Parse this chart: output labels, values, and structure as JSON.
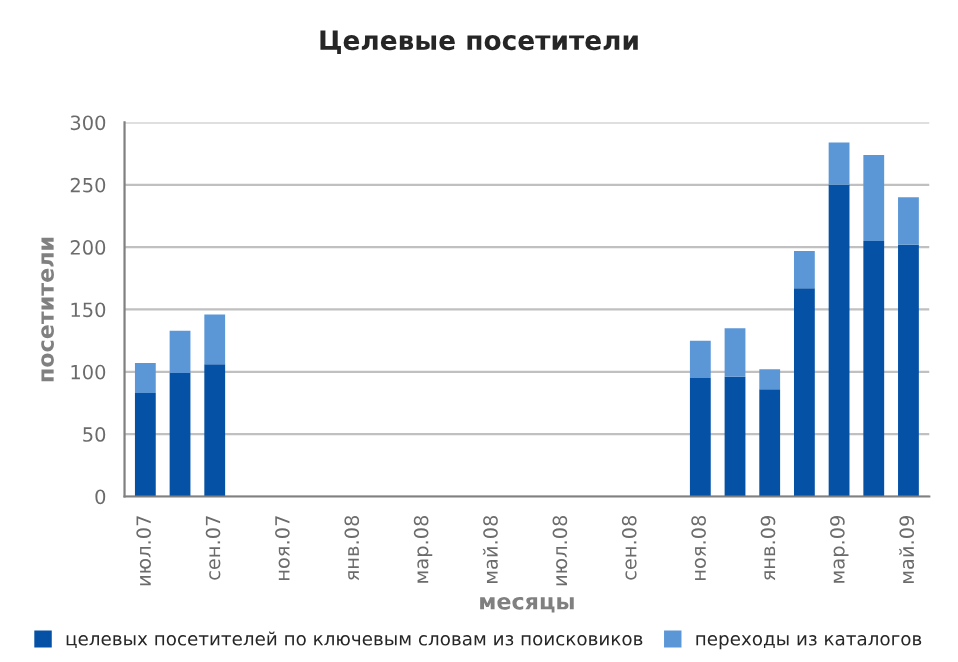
{
  "chart_data": {
    "type": "bar",
    "title": "Целевые посетители",
    "xlabel": "месяцы",
    "ylabel": "посетители",
    "categories": [
      "июл.07",
      null,
      "сен.07",
      null,
      "ноя.07",
      null,
      "янв.08",
      null,
      "мар.08",
      null,
      "май.08",
      null,
      "июл.08",
      null,
      "сен.08",
      null,
      "ноя.08",
      null,
      "янв.09",
      null,
      "мар.09",
      null,
      "май.09"
    ],
    "stacked": true,
    "series": [
      {
        "name": "целевых посетителей по ключевым словам из поисковиков",
        "color": "#0451a5",
        "values": [
          83,
          99,
          106,
          null,
          null,
          null,
          null,
          null,
          null,
          null,
          null,
          null,
          null,
          null,
          null,
          null,
          95,
          96,
          86,
          167,
          250,
          205,
          202
        ]
      },
      {
        "name": "переходы из каталогов",
        "color": "#5b97d6",
        "values": [
          24,
          34,
          40,
          null,
          null,
          null,
          null,
          null,
          null,
          null,
          null,
          null,
          null,
          null,
          null,
          null,
          30,
          39,
          16,
          30,
          34,
          69,
          38
        ]
      }
    ],
    "ylim": [
      0,
      300
    ],
    "yticks": [
      0,
      50,
      100,
      150,
      200,
      250,
      300
    ],
    "grid": "y",
    "legend": "bottom"
  }
}
